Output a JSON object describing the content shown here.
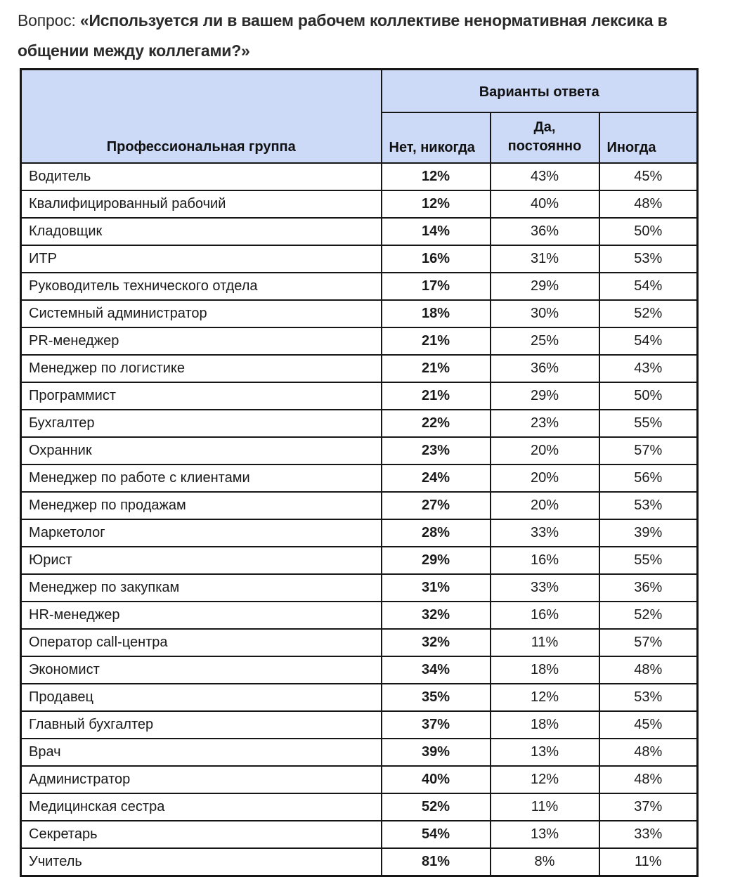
{
  "title": {
    "prefix": "Вопрос: ",
    "line1_bold": "«Используется ли в вашем рабочем коллективе ненормативная лексика в",
    "line2_bold": "общении между коллегами?»"
  },
  "table": {
    "group_header": "Профессиональная группа",
    "answers_header": "Варианты ответа",
    "columns": {
      "never": "Нет, никогда",
      "always": "Да,\nпостоянно",
      "sometimes": "Иногда"
    },
    "rows": [
      [
        "Водитель",
        "12%",
        "43%",
        "45%"
      ],
      [
        "Квалифицированный рабочий",
        "12%",
        "40%",
        "48%"
      ],
      [
        "Кладовщик",
        "14%",
        "36%",
        "50%"
      ],
      [
        "ИТР",
        "16%",
        "31%",
        "53%"
      ],
      [
        "Руководитель технического отдела",
        "17%",
        "29%",
        "54%"
      ],
      [
        "Системный администратор",
        "18%",
        "30%",
        "52%"
      ],
      [
        "PR-менеджер",
        "21%",
        "25%",
        "54%"
      ],
      [
        "Менеджер по логистике",
        "21%",
        "36%",
        "43%"
      ],
      [
        "Программист",
        "21%",
        "29%",
        "50%"
      ],
      [
        "Бухгалтер",
        "22%",
        "23%",
        "55%"
      ],
      [
        "Охранник",
        "23%",
        "20%",
        "57%"
      ],
      [
        "Менеджер по работе с клиентами",
        "24%",
        "20%",
        "56%"
      ],
      [
        "Менеджер по продажам",
        "27%",
        "20%",
        "53%"
      ],
      [
        "Маркетолог",
        "28%",
        "33%",
        "39%"
      ],
      [
        "Юрист",
        "29%",
        "16%",
        "55%"
      ],
      [
        "Менеджер по закупкам",
        "31%",
        "33%",
        "36%"
      ],
      [
        "HR-менеджер",
        "32%",
        "16%",
        "52%"
      ],
      [
        "Оператор call-центра",
        "32%",
        "11%",
        "57%"
      ],
      [
        "Экономист",
        "34%",
        "18%",
        "48%"
      ],
      [
        "Продавец",
        "35%",
        "12%",
        "53%"
      ],
      [
        "Главный бухгалтер",
        "37%",
        "18%",
        "45%"
      ],
      [
        "Врач",
        "39%",
        "13%",
        "48%"
      ],
      [
        "Администратор",
        "40%",
        "12%",
        "48%"
      ],
      [
        "Медицинская сестра",
        "52%",
        "11%",
        "37%"
      ],
      [
        "Секретарь",
        "54%",
        "13%",
        "33%"
      ],
      [
        "Учитель",
        "81%",
        "8%",
        "11%"
      ]
    ]
  },
  "colors": {
    "header_bg": "#ccdaf7",
    "border": "#161616",
    "text": "#1a1a1a"
  }
}
